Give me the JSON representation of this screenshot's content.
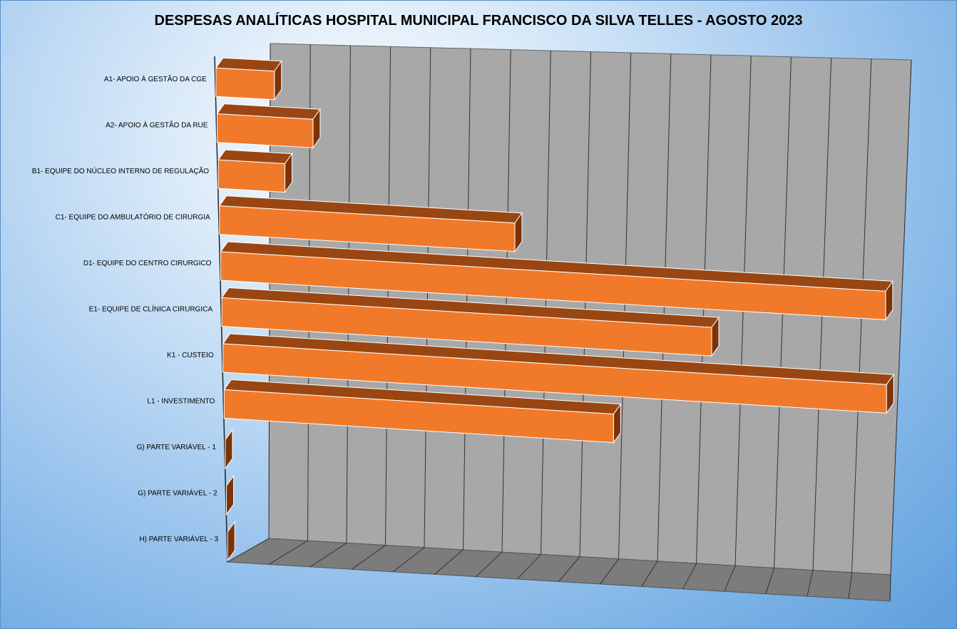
{
  "chart_data": {
    "type": "bar",
    "orientation": "horizontal",
    "style": "3d",
    "title": "DESPESAS ANALÍTICAS HOSPITAL MUNICIPAL FRANCISCO DA SILVA TELLES - AGOSTO 2023",
    "categories": [
      "A1- APOIO À GESTÃO DA CGE",
      "A2- APOIO À GESTÃO DA RUE",
      "B1- EQUIPE DO NÚCLEO INTERNO DE REGULAÇÃO",
      "C1- EQUIPE DO AMBULATÓRIO DE CIRURGIA",
      "D1- EQUIPE DO CENTRO CIRURGICO",
      "E1- EQUIPE DE CLÍNICA CIRURGICA",
      "K1 - CUSTEIO",
      "L1 - INVESTIMENTO",
      "G) PARTE VARIÁVEL - 1",
      "G) PARTE VARIÁVEL - 2",
      "H) PARTE VARIÁVEL - 3"
    ],
    "values": [
      1.4,
      2.3,
      1.6,
      7.1,
      16.4,
      11.8,
      16.4,
      9.4,
      0,
      0,
      0
    ],
    "xlim": [
      0,
      16
    ],
    "grid": true,
    "legend": "none",
    "colors": {
      "bar_front": "#f07a2a",
      "bar_top": "#9a4612",
      "bar_side": "#7a3408",
      "wall": "#a8a8a8",
      "floor": "#7c7c7c",
      "gridline": "#333333"
    }
  }
}
